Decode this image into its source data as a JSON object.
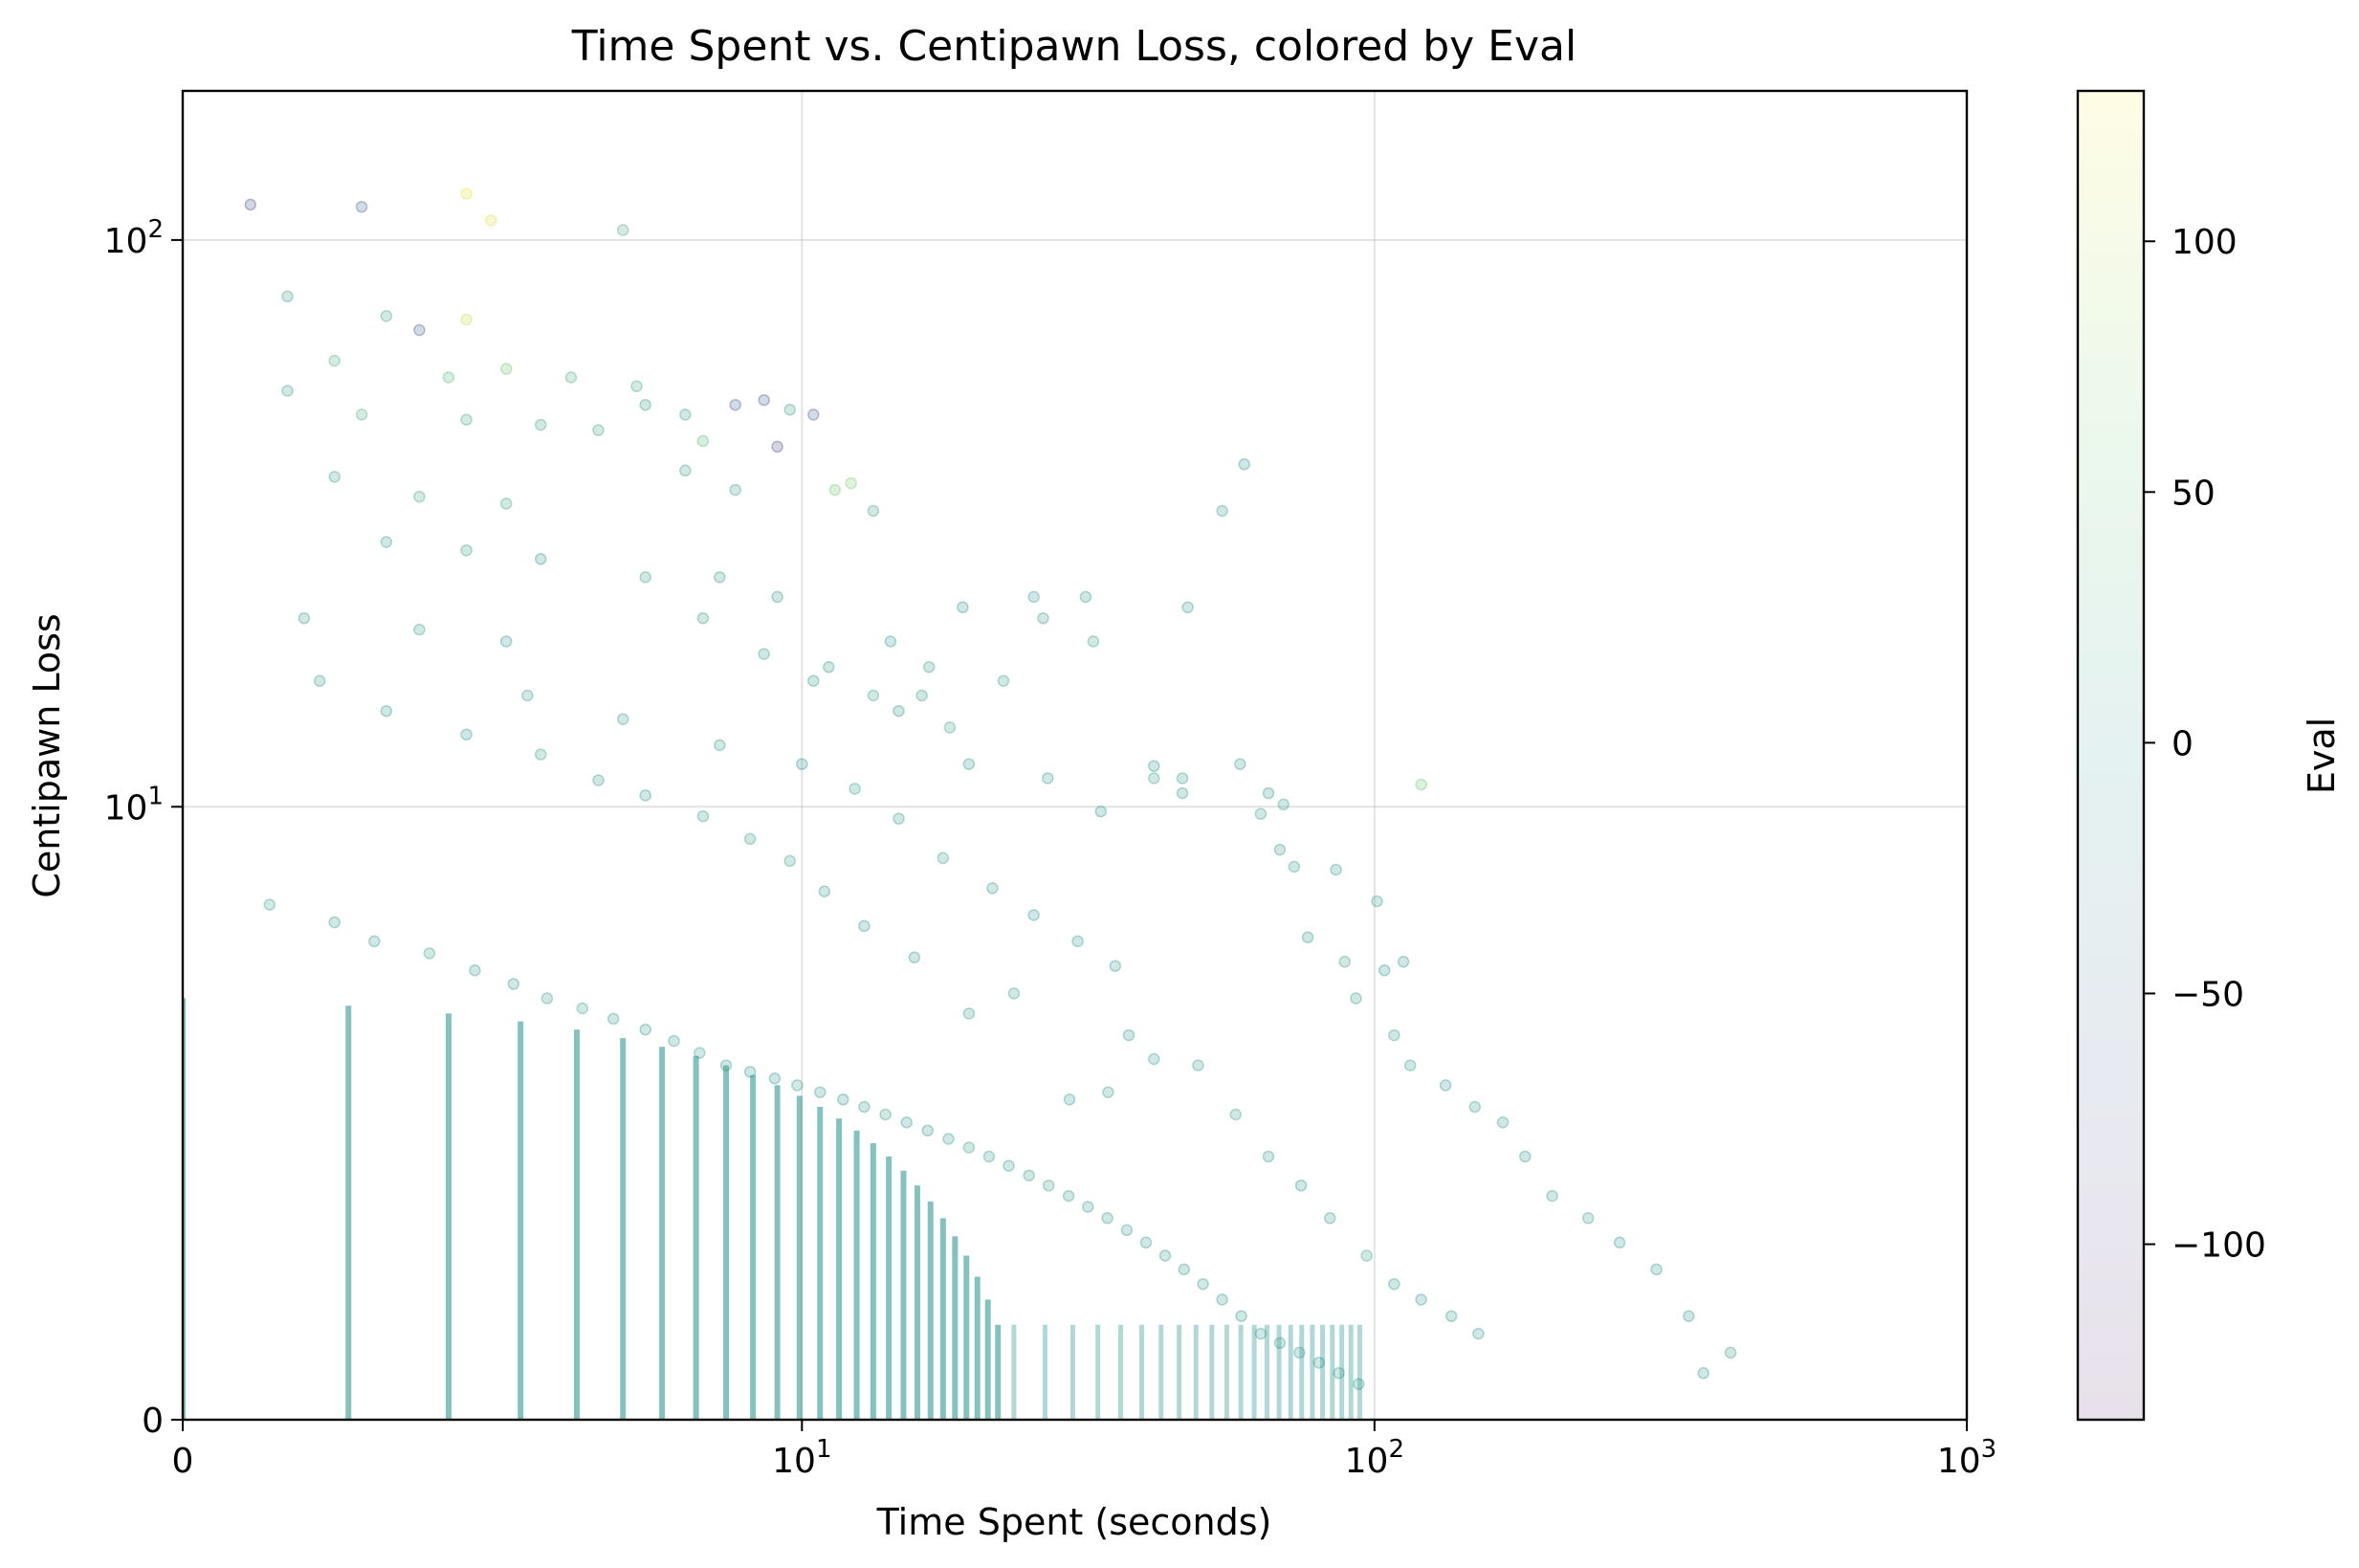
{
  "chart_data": {
    "type": "scatter",
    "title": "Time Spent vs. Centipawn Loss, colored by Eval",
    "xlabel": "Time Spent (seconds)",
    "ylabel": "Centipawn Loss",
    "xscale": "symlog",
    "yscale": "symlog",
    "xlim": [
      0,
      1000
    ],
    "ylim": [
      0,
      180
    ],
    "x_ticks": [
      {
        "value": 0,
        "base": "0",
        "exp": ""
      },
      {
        "value": 10,
        "base": "10",
        "exp": "1"
      },
      {
        "value": 100,
        "base": "10",
        "exp": "2"
      },
      {
        "value": 1000,
        "base": "10",
        "exp": "3"
      }
    ],
    "y_ticks": [
      {
        "value": 0,
        "base": "0",
        "exp": ""
      },
      {
        "value": 10,
        "base": "10",
        "exp": "1"
      },
      {
        "value": 100,
        "base": "10",
        "exp": "2"
      }
    ],
    "grid": true,
    "colorbar": {
      "label": "Eval",
      "colormap": "viridis",
      "range": [
        -135,
        130
      ],
      "ticks": [
        {
          "value": 100,
          "label": "100"
        },
        {
          "value": 50,
          "label": "50"
        },
        {
          "value": 0,
          "label": "0"
        },
        {
          "value": -50,
          "label": "−50"
        },
        {
          "value": -100,
          "label": "−100"
        }
      ]
    },
    "points": [
      [
        0.3,
        115,
        -80
      ],
      [
        1.0,
        114,
        -60
      ],
      [
        2.0,
        120,
        120
      ],
      [
        2.3,
        108,
        115
      ],
      [
        4.5,
        104,
        20
      ],
      [
        0.5,
        80,
        10
      ],
      [
        1.2,
        74,
        15
      ],
      [
        1.5,
        70,
        -70
      ],
      [
        2.0,
        73,
        105
      ],
      [
        0.8,
        62,
        30
      ],
      [
        1.8,
        58,
        40
      ],
      [
        2.5,
        60,
        60
      ],
      [
        3.5,
        58,
        25
      ],
      [
        4.8,
        56,
        20
      ],
      [
        0.5,
        55,
        10
      ],
      [
        1.0,
        50,
        30
      ],
      [
        2.0,
        49,
        20
      ],
      [
        3.0,
        48,
        10
      ],
      [
        4.0,
        47,
        15
      ],
      [
        5.0,
        52,
        5
      ],
      [
        6.0,
        50,
        10
      ],
      [
        7.5,
        52,
        -60
      ],
      [
        8.5,
        53,
        -70
      ],
      [
        9.5,
        51,
        10
      ],
      [
        10.5,
        50,
        -65
      ],
      [
        6.5,
        45,
        40
      ],
      [
        9.0,
        44,
        -80
      ],
      [
        0.8,
        39,
        10
      ],
      [
        1.5,
        36,
        20
      ],
      [
        2.5,
        35,
        15
      ],
      [
        6.0,
        40,
        10
      ],
      [
        7.5,
        37,
        5
      ],
      [
        11.5,
        37,
        60
      ],
      [
        12.3,
        38,
        70
      ],
      [
        13.5,
        34,
        10
      ],
      [
        1.2,
        30,
        5
      ],
      [
        2.0,
        29,
        10
      ],
      [
        3.0,
        28,
        0
      ],
      [
        5.0,
        26,
        10
      ],
      [
        7.0,
        26,
        5
      ],
      [
        9.0,
        24,
        0
      ],
      [
        0.6,
        22,
        5
      ],
      [
        1.5,
        21,
        10
      ],
      [
        2.5,
        20,
        0
      ],
      [
        6.5,
        22,
        10
      ],
      [
        8.5,
        19,
        5
      ],
      [
        10.5,
        17,
        0
      ],
      [
        11.2,
        18,
        5
      ],
      [
        13.5,
        16,
        10
      ],
      [
        15.0,
        15,
        0
      ],
      [
        16.5,
        16,
        5
      ],
      [
        18.5,
        14,
        10
      ],
      [
        20.0,
        12,
        5
      ],
      [
        14.5,
        20,
        0
      ],
      [
        17.0,
        18,
        10
      ],
      [
        23.0,
        17,
        10
      ],
      [
        27.0,
        22,
        5
      ],
      [
        32.0,
        24,
        0
      ],
      [
        48.0,
        23,
        5
      ],
      [
        60.0,
        41,
        0
      ],
      [
        55.0,
        34,
        5
      ],
      [
        33.0,
        20,
        10
      ],
      [
        26.0,
        24,
        5
      ],
      [
        19.5,
        23,
        0
      ],
      [
        27.5,
        11.3,
        5
      ],
      [
        42.0,
        11.9,
        0
      ],
      [
        42.0,
        11.3,
        10
      ],
      [
        47.0,
        11.3,
        5
      ],
      [
        47.0,
        10.6,
        5
      ],
      [
        34.0,
        9.8,
        0
      ],
      [
        59.0,
        12.0,
        5
      ],
      [
        64.0,
        9.7,
        10
      ],
      [
        69.0,
        8.3,
        0
      ],
      [
        73.0,
        7.7,
        5
      ],
      [
        77.0,
        5.6,
        5
      ],
      [
        86.0,
        7.6,
        0
      ],
      [
        89.0,
        5.0,
        10
      ],
      [
        93.0,
        4.2,
        5
      ],
      [
        66.0,
        10.6,
        0
      ],
      [
        70.0,
        10.1,
        5
      ],
      [
        112.0,
        5.0,
        5
      ],
      [
        120.0,
        11.0,
        60
      ],
      [
        101.0,
        6.6,
        10
      ],
      [
        104.0,
        4.8,
        0
      ],
      [
        108.0,
        3.5,
        5
      ],
      [
        115.0,
        3.0,
        5
      ],
      [
        132.0,
        2.7,
        0
      ],
      [
        148.0,
        2.4,
        5
      ],
      [
        165.0,
        2.2,
        5
      ],
      [
        180.0,
        1.8,
        0
      ],
      [
        200.0,
        1.4,
        5
      ],
      [
        230.0,
        1.2,
        10
      ],
      [
        260.0,
        1.0,
        5
      ],
      [
        300.0,
        0.8,
        0
      ],
      [
        340.0,
        0.5,
        5
      ],
      [
        400.0,
        0.3,
        5
      ],
      [
        360.0,
        0.2,
        0
      ],
      [
        0.4,
        6.5,
        10
      ],
      [
        0.8,
        6.0,
        5
      ],
      [
        1.1,
        5.5,
        0
      ],
      [
        1.6,
        5.2,
        10
      ],
      [
        2.1,
        4.8,
        5
      ],
      [
        2.6,
        4.5,
        0
      ],
      [
        3.1,
        4.2,
        5
      ],
      [
        3.7,
        4.0,
        10
      ],
      [
        4.3,
        3.8,
        5
      ],
      [
        5.0,
        3.6,
        0
      ],
      [
        5.7,
        3.4,
        5
      ],
      [
        6.4,
        3.2,
        10
      ],
      [
        7.2,
        3.0,
        5
      ],
      [
        8.0,
        2.9,
        0
      ],
      [
        8.9,
        2.8,
        5
      ],
      [
        9.8,
        2.7,
        10
      ],
      [
        10.8,
        2.6,
        5
      ],
      [
        11.9,
        2.5,
        0
      ],
      [
        13.0,
        2.4,
        5
      ],
      [
        14.2,
        2.3,
        10
      ],
      [
        15.5,
        2.2,
        5
      ],
      [
        16.9,
        2.1,
        0
      ],
      [
        18.4,
        2.0,
        5
      ],
      [
        20.0,
        1.9,
        10
      ],
      [
        21.7,
        1.8,
        5
      ],
      [
        23.5,
        1.7,
        0
      ],
      [
        25.5,
        1.6,
        5
      ],
      [
        27.6,
        1.5,
        10
      ],
      [
        29.9,
        1.4,
        5
      ],
      [
        32.3,
        1.3,
        0
      ],
      [
        34.9,
        1.2,
        5
      ],
      [
        37.7,
        1.1,
        10
      ],
      [
        40.7,
        1.0,
        5
      ],
      [
        43.9,
        0.9,
        0
      ],
      [
        47.3,
        0.8,
        5
      ],
      [
        51.0,
        0.7,
        10
      ],
      [
        55.0,
        0.6,
        5
      ],
      [
        59.3,
        0.5,
        0
      ],
      [
        64.0,
        0.4,
        5
      ],
      [
        69.0,
        0.35,
        10
      ],
      [
        74.5,
        0.3,
        5
      ],
      [
        80.5,
        0.25,
        0
      ],
      [
        87.0,
        0.2,
        5
      ],
      [
        94.0,
        0.15,
        5
      ],
      [
        30.0,
        2.5,
        5
      ],
      [
        35.0,
        2.6,
        10
      ],
      [
        38.0,
        3.5,
        0
      ],
      [
        42.0,
        3.1,
        5
      ],
      [
        20.0,
        3.9,
        5
      ],
      [
        24.0,
        4.3,
        10
      ],
      [
        16.0,
        5.1,
        5
      ],
      [
        13.0,
        5.9,
        0
      ],
      [
        11.0,
        6.9,
        5
      ],
      [
        9.5,
        7.9,
        10
      ],
      [
        8.0,
        8.7,
        5
      ],
      [
        6.5,
        9.6,
        5
      ],
      [
        5.0,
        10.5,
        0
      ],
      [
        4.0,
        11.2,
        5
      ],
      [
        3.0,
        12.5,
        10
      ],
      [
        2.0,
        13.6,
        5
      ],
      [
        1.2,
        15.0,
        0
      ],
      [
        0.7,
        17.0,
        5
      ],
      [
        2.8,
        16.0,
        5
      ],
      [
        4.5,
        14.5,
        10
      ],
      [
        7.0,
        13.0,
        5
      ],
      [
        10.0,
        12.0,
        0
      ],
      [
        12.5,
        10.8,
        5
      ],
      [
        15.0,
        9.5,
        5
      ],
      [
        18.0,
        8.0,
        10
      ],
      [
        22.0,
        7.0,
        5
      ],
      [
        26.0,
        6.2,
        0
      ],
      [
        31.0,
        5.5,
        5
      ],
      [
        36.0,
        4.9,
        5
      ],
      [
        50.0,
        3.0,
        5
      ],
      [
        58.0,
        2.3,
        10
      ],
      [
        66.0,
        1.8,
        5
      ],
      [
        75.0,
        1.5,
        0
      ],
      [
        84.0,
        1.2,
        5
      ],
      [
        97.0,
        0.9,
        10
      ],
      [
        108.0,
        0.7,
        5
      ],
      [
        120.0,
        0.6,
        0
      ],
      [
        135.0,
        0.5,
        5
      ],
      [
        150.0,
        0.4,
        5
      ]
    ]
  }
}
